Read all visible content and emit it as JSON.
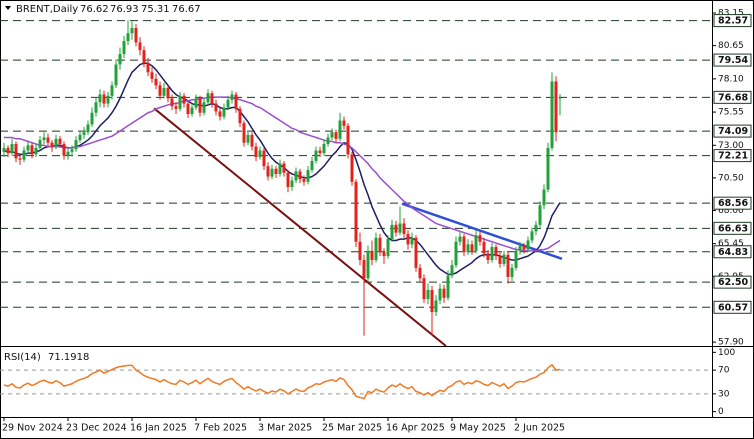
{
  "chart_data": {
    "type": "candlestick",
    "symbol": "BRENT,Daily",
    "categories": [
      "29 Nov 2024",
      null,
      null,
      null,
      null,
      null,
      null,
      null,
      null,
      null,
      null,
      null,
      null,
      null,
      null,
      null,
      "23 Dec 2024",
      null,
      null,
      null,
      null,
      null,
      null,
      null,
      null,
      null,
      null,
      null,
      null,
      null,
      null,
      null,
      "16 Jan 2025",
      null,
      null,
      null,
      null,
      null,
      null,
      null,
      null,
      null,
      null,
      null,
      null,
      null,
      null,
      null,
      "7 Feb 2025",
      null,
      null,
      null,
      null,
      null,
      null,
      null,
      null,
      null,
      null,
      null,
      null,
      null,
      null,
      null,
      "3 Mar 2025",
      null,
      null,
      null,
      null,
      null,
      null,
      null,
      null,
      null,
      null,
      null,
      null,
      null,
      null,
      null,
      "25 Mar 2025",
      null,
      null,
      null,
      null,
      null,
      null,
      null,
      null,
      null,
      null,
      null,
      null,
      null,
      null,
      null,
      "16 Apr 2025",
      null,
      null,
      null,
      null,
      null,
      null,
      null,
      null,
      null,
      null,
      null,
      null,
      null,
      null,
      null,
      "9 May 2025",
      null,
      null,
      null,
      null,
      null,
      null,
      null,
      null,
      null,
      null,
      null,
      null,
      null,
      null,
      null,
      "2 Jun 2025",
      null,
      null,
      null,
      null,
      null,
      null,
      null,
      null,
      null,
      null,
      null
    ],
    "ohlc": [
      [
        72.5,
        73.2,
        72.1,
        72.8
      ],
      [
        72.8,
        73.0,
        72.1,
        72.4
      ],
      [
        72.4,
        73.5,
        72.2,
        73.1
      ],
      [
        73.1,
        73.3,
        71.7,
        72.0
      ],
      [
        72.0,
        72.4,
        71.5,
        71.9
      ],
      [
        71.9,
        72.9,
        71.7,
        72.6
      ],
      [
        72.6,
        73.3,
        72.3,
        73.0
      ],
      [
        73.0,
        73.2,
        72.0,
        72.3
      ],
      [
        72.3,
        73.1,
        72.1,
        72.8
      ],
      [
        72.8,
        73.7,
        72.6,
        73.4
      ],
      [
        73.4,
        74.0,
        73.1,
        73.6
      ],
      [
        73.6,
        73.9,
        72.9,
        73.2
      ],
      [
        73.2,
        73.4,
        72.5,
        72.9
      ],
      [
        72.9,
        73.8,
        72.7,
        73.5
      ],
      [
        73.5,
        73.7,
        72.8,
        73.1
      ],
      [
        73.1,
        73.3,
        71.9,
        72.2
      ],
      [
        72.2,
        72.9,
        71.9,
        72.5
      ],
      [
        72.5,
        73.0,
        72.2,
        72.7
      ],
      [
        72.7,
        73.7,
        72.5,
        73.4
      ],
      [
        73.4,
        74.1,
        73.2,
        73.8
      ],
      [
        73.8,
        74.4,
        73.5,
        74.0
      ],
      [
        74.0,
        74.9,
        73.8,
        74.6
      ],
      [
        74.6,
        75.9,
        74.4,
        75.5
      ],
      [
        75.5,
        76.7,
        75.2,
        76.3
      ],
      [
        76.3,
        77.3,
        75.9,
        76.9
      ],
      [
        76.9,
        77.2,
        75.9,
        76.2
      ],
      [
        76.2,
        77.1,
        75.9,
        76.8
      ],
      [
        76.8,
        77.9,
        76.5,
        77.6
      ],
      [
        77.6,
        79.6,
        77.4,
        79.2
      ],
      [
        79.2,
        80.5,
        78.8,
        80.0
      ],
      [
        80.0,
        81.4,
        79.7,
        81.0
      ],
      [
        81.0,
        82.6,
        80.7,
        81.6
      ],
      [
        81.6,
        82.5,
        81.1,
        82.0
      ],
      [
        82.0,
        82.3,
        80.6,
        80.9
      ],
      [
        80.9,
        81.3,
        79.9,
        80.3
      ],
      [
        80.3,
        80.6,
        79.0,
        79.3
      ],
      [
        79.3,
        79.7,
        78.3,
        78.6
      ],
      [
        78.6,
        79.0,
        77.8,
        78.1
      ],
      [
        78.1,
        78.5,
        77.3,
        77.6
      ],
      [
        77.6,
        77.9,
        76.5,
        76.8
      ],
      [
        76.8,
        77.8,
        76.6,
        77.4
      ],
      [
        77.4,
        77.6,
        76.3,
        76.6
      ],
      [
        76.6,
        76.9,
        75.7,
        76.0
      ],
      [
        76.0,
        76.3,
        75.4,
        75.8
      ],
      [
        75.8,
        77.1,
        75.6,
        76.8
      ],
      [
        76.8,
        77.0,
        75.9,
        76.2
      ],
      [
        76.2,
        76.4,
        75.1,
        75.4
      ],
      [
        75.4,
        76.2,
        75.2,
        75.9
      ],
      [
        75.9,
        76.9,
        75.7,
        76.6
      ],
      [
        76.6,
        76.8,
        75.2,
        75.5
      ],
      [
        75.5,
        76.6,
        75.3,
        76.3
      ],
      [
        76.3,
        77.3,
        76.1,
        77.0
      ],
      [
        77.0,
        77.2,
        75.9,
        76.2
      ],
      [
        76.2,
        76.5,
        75.3,
        75.6
      ],
      [
        75.6,
        75.9,
        74.9,
        75.2
      ],
      [
        75.2,
        76.2,
        75.0,
        75.9
      ],
      [
        75.9,
        76.8,
        75.7,
        76.5
      ],
      [
        76.5,
        77.2,
        76.2,
        76.9
      ],
      [
        76.9,
        77.1,
        75.5,
        75.8
      ],
      [
        75.8,
        76.0,
        74.4,
        74.7
      ],
      [
        74.7,
        74.9,
        72.9,
        73.2
      ],
      [
        73.2,
        74.1,
        73.0,
        73.8
      ],
      [
        73.8,
        74.0,
        72.6,
        72.9
      ],
      [
        72.9,
        73.2,
        71.8,
        72.1
      ],
      [
        72.1,
        72.9,
        71.9,
        72.6
      ],
      [
        72.6,
        72.8,
        71.1,
        71.4
      ],
      [
        71.4,
        71.7,
        70.3,
        70.6
      ],
      [
        70.6,
        71.5,
        70.4,
        71.2
      ],
      [
        71.2,
        71.4,
        70.5,
        70.8
      ],
      [
        70.8,
        71.9,
        70.6,
        71.6
      ],
      [
        71.6,
        71.8,
        70.6,
        70.9
      ],
      [
        70.9,
        71.1,
        69.4,
        69.8
      ],
      [
        69.8,
        70.6,
        69.5,
        70.3
      ],
      [
        70.3,
        71.3,
        70.1,
        71.0
      ],
      [
        71.0,
        71.2,
        70.1,
        70.4
      ],
      [
        70.4,
        70.7,
        69.9,
        70.2
      ],
      [
        70.2,
        71.4,
        70.0,
        71.1
      ],
      [
        71.1,
        72.1,
        70.9,
        71.8
      ],
      [
        71.8,
        72.9,
        71.6,
        72.6
      ],
      [
        72.6,
        72.9,
        72.1,
        72.4
      ],
      [
        72.4,
        73.4,
        72.2,
        73.1
      ],
      [
        73.1,
        73.9,
        72.9,
        73.6
      ],
      [
        73.6,
        74.3,
        73.4,
        74.0
      ],
      [
        74.0,
        74.2,
        73.2,
        73.5
      ],
      [
        73.5,
        75.5,
        73.3,
        74.9
      ],
      [
        74.9,
        75.2,
        74.2,
        74.5
      ],
      [
        74.5,
        74.7,
        72.0,
        72.3
      ],
      [
        72.3,
        72.5,
        69.9,
        70.2
      ],
      [
        70.2,
        70.4,
        65.2,
        65.6
      ],
      [
        65.6,
        66.3,
        63.8,
        64.2
      ],
      [
        64.2,
        64.6,
        58.4,
        62.8
      ],
      [
        62.8,
        65.3,
        62.5,
        64.9
      ],
      [
        64.9,
        65.7,
        63.8,
        64.2
      ],
      [
        64.2,
        66.3,
        64.0,
        65.9
      ],
      [
        65.9,
        66.2,
        64.5,
        64.8
      ],
      [
        64.8,
        65.1,
        63.9,
        64.5
      ],
      [
        64.5,
        66.1,
        64.3,
        65.8
      ],
      [
        65.8,
        67.3,
        65.6,
        66.9
      ],
      [
        66.9,
        67.2,
        66.0,
        66.3
      ],
      [
        66.3,
        68.3,
        66.1,
        67.0
      ],
      [
        67.0,
        67.4,
        65.9,
        66.2
      ],
      [
        66.2,
        66.5,
        65.0,
        65.4
      ],
      [
        65.4,
        66.3,
        65.1,
        65.9
      ],
      [
        65.9,
        66.1,
        63.3,
        63.6
      ],
      [
        63.6,
        63.9,
        62.5,
        62.8
      ],
      [
        62.8,
        63.1,
        60.9,
        61.2
      ],
      [
        61.2,
        62.4,
        60.8,
        61.9
      ],
      [
        61.9,
        62.2,
        58.4,
        60.2
      ],
      [
        60.2,
        61.5,
        59.9,
        61.1
      ],
      [
        61.1,
        62.4,
        60.8,
        62.0
      ],
      [
        62.0,
        62.3,
        60.9,
        61.3
      ],
      [
        61.3,
        63.4,
        61.1,
        63.0
      ],
      [
        63.0,
        64.2,
        62.8,
        63.8
      ],
      [
        63.8,
        66.0,
        63.6,
        65.6
      ],
      [
        65.6,
        66.4,
        65.3,
        66.0
      ],
      [
        66.0,
        66.2,
        64.5,
        64.8
      ],
      [
        64.8,
        65.8,
        64.6,
        65.4
      ],
      [
        65.4,
        65.7,
        64.6,
        64.9
      ],
      [
        64.9,
        66.5,
        64.7,
        66.1
      ],
      [
        66.1,
        66.4,
        65.3,
        65.6
      ],
      [
        65.6,
        65.9,
        64.4,
        64.7
      ],
      [
        64.7,
        65.0,
        63.9,
        64.2
      ],
      [
        64.2,
        65.5,
        64.0,
        65.2
      ],
      [
        65.2,
        65.4,
        64.2,
        64.5
      ],
      [
        64.5,
        64.8,
        63.6,
        63.9
      ],
      [
        63.9,
        64.9,
        63.7,
        64.6
      ],
      [
        64.6,
        64.8,
        62.4,
        62.9
      ],
      [
        62.9,
        63.9,
        62.6,
        63.6
      ],
      [
        63.6,
        65.2,
        63.4,
        64.9
      ],
      [
        64.9,
        65.6,
        64.6,
        65.3
      ],
      [
        65.3,
        65.5,
        64.7,
        65.0
      ],
      [
        65.0,
        66.0,
        64.8,
        65.7
      ],
      [
        65.7,
        66.7,
        65.5,
        66.4
      ],
      [
        66.4,
        67.2,
        66.1,
        66.9
      ],
      [
        66.9,
        68.7,
        66.7,
        68.4
      ],
      [
        68.4,
        70.0,
        68.1,
        69.6
      ],
      [
        69.6,
        73.2,
        69.4,
        72.8
      ],
      [
        72.8,
        78.6,
        72.6,
        77.9
      ],
      [
        77.9,
        78.3,
        73.3,
        74.0
      ],
      [
        76.62,
        76.93,
        75.31,
        76.67
      ]
    ],
    "up_color": "#22a03a",
    "down_color": "#e0231c",
    "series": [
      {
        "color": "#1b1f66",
        "values": [
          72.6,
          72.5,
          72.5,
          72.4,
          72.3,
          72.3,
          72.4,
          72.4,
          72.5,
          72.6,
          72.8,
          72.9,
          72.9,
          73.0,
          73.0,
          72.9,
          72.8,
          72.8,
          72.9,
          73.0,
          73.2,
          73.4,
          73.7,
          74.1,
          74.5,
          74.8,
          75.1,
          75.5,
          76.0,
          76.6,
          77.3,
          78.0,
          78.6,
          78.9,
          79.2,
          79.3,
          79.3,
          79.1,
          78.8,
          78.4,
          78.0,
          77.6,
          77.2,
          76.9,
          76.7,
          76.6,
          76.4,
          76.2,
          76.1,
          76.1,
          76.0,
          76.1,
          76.2,
          76.1,
          75.9,
          75.8,
          75.8,
          75.9,
          75.9,
          75.6,
          75.2,
          74.8,
          74.3,
          73.8,
          73.4,
          72.9,
          72.4,
          72.0,
          71.7,
          71.5,
          71.3,
          71.0,
          70.8,
          70.7,
          70.6,
          70.5,
          70.5,
          70.6,
          70.8,
          71.1,
          71.4,
          71.8,
          72.2,
          72.5,
          72.9,
          73.2,
          73.1,
          72.7,
          71.9,
          71.0,
          70.0,
          69.2,
          68.3,
          67.6,
          66.9,
          66.3,
          65.9,
          65.7,
          65.7,
          65.8,
          65.8,
          65.9,
          65.9,
          65.7,
          65.4,
          65.0,
          64.6,
          64.2,
          63.8,
          63.5,
          63.3,
          63.1,
          63.1,
          63.2,
          63.4,
          63.6,
          63.8,
          64.0,
          64.3,
          64.5,
          64.6,
          64.6,
          64.6,
          64.6,
          64.5,
          64.4,
          64.3,
          64.2,
          64.2,
          64.3,
          64.4,
          64.5,
          64.7,
          64.9,
          65.3,
          65.9,
          66.7,
          67.6,
          68.1,
          68.6
        ]
      },
      {
        "color": "#9b4fcf",
        "values": [
          73.6,
          73.6,
          73.6,
          73.5,
          73.5,
          73.4,
          73.3,
          73.2,
          73.1,
          73.0,
          73.0,
          72.9,
          72.9,
          72.9,
          72.9,
          72.8,
          72.8,
          72.8,
          72.9,
          72.9,
          73.0,
          73.1,
          73.2,
          73.3,
          73.4,
          73.5,
          73.6,
          73.7,
          73.9,
          74.1,
          74.3,
          74.5,
          74.7,
          74.9,
          75.1,
          75.3,
          75.5,
          75.6,
          75.8,
          75.9,
          76.0,
          76.1,
          76.2,
          76.2,
          76.3,
          76.4,
          76.4,
          76.5,
          76.5,
          76.6,
          76.6,
          76.7,
          76.7,
          76.7,
          76.7,
          76.7,
          76.7,
          76.6,
          76.6,
          76.5,
          76.4,
          76.3,
          76.2,
          76.0,
          75.9,
          75.7,
          75.5,
          75.3,
          75.1,
          74.9,
          74.7,
          74.5,
          74.3,
          74.2,
          74.0,
          73.9,
          73.8,
          73.7,
          73.6,
          73.5,
          73.4,
          73.3,
          73.3,
          73.2,
          73.2,
          73.1,
          73.0,
          72.8,
          72.5,
          72.2,
          71.9,
          71.6,
          71.2,
          70.9,
          70.5,
          70.2,
          69.9,
          69.6,
          69.3,
          69.0,
          68.7,
          68.5,
          68.2,
          68.0,
          67.8,
          67.6,
          67.4,
          67.2,
          67.0,
          66.9,
          66.8,
          66.7,
          66.6,
          66.5,
          66.4,
          66.3,
          66.2,
          66.1,
          66.0,
          65.9,
          65.8,
          65.7,
          65.6,
          65.5,
          65.4,
          65.3,
          65.2,
          65.1,
          65.0,
          65.0,
          64.9,
          64.9,
          64.9,
          64.9,
          65.0,
          65.0,
          65.1,
          65.3,
          65.5,
          65.7
        ]
      }
    ],
    "trendlines": [
      {
        "color": "#7a0f0f",
        "x": [
          37.5,
          110.5
        ],
        "values": [
          75.84,
          57.6
        ]
      },
      {
        "color": "#2f4fd6",
        "x": [
          99.5,
          139.5
        ],
        "values": [
          68.52,
          64.29
        ]
      }
    ],
    "ylim": [
      57.6,
      84.15
    ],
    "yticks": [
      83.15,
      80.65,
      {
        "value": 78.1,
        "label": "78.10"
      },
      75.55,
      {
        "value": 73,
        "label": "73.00"
      },
      {
        "value": 70.5,
        "label": "70.50"
      },
      {
        "value": 68,
        "label": "68.00"
      },
      65.45,
      62.95,
      {
        "value": 57.9,
        "label": "57.90"
      }
    ],
    "levels": [
      82.57,
      79.54,
      76.68,
      74.09,
      72.21,
      68.56,
      66.63,
      64.83,
      {
        "value": 62.5,
        "label": "62.50"
      },
      60.57
    ],
    "level_color": "#1f3a24",
    "rsi": {
      "title": "RSI(14)",
      "color": "#f07a22",
      "values": [
        45,
        43,
        47,
        41,
        40,
        45,
        48,
        44,
        47,
        51,
        53,
        50,
        48,
        52,
        49,
        43,
        45,
        47,
        51,
        54,
        56,
        59,
        64,
        67,
        70,
        65,
        68,
        71,
        74,
        76,
        77,
        78,
        78,
        70,
        66,
        61,
        58,
        56,
        54,
        50,
        54,
        50,
        47,
        46,
        53,
        50,
        46,
        49,
        53,
        47,
        52,
        56,
        51,
        48,
        46,
        51,
        54,
        56,
        49,
        44,
        38,
        42,
        38,
        35,
        38,
        34,
        31,
        35,
        33,
        38,
        35,
        30,
        34,
        38,
        35,
        34,
        40,
        43,
        47,
        46,
        50,
        52,
        54,
        51,
        57,
        54,
        44,
        37,
        26,
        24,
        22,
        34,
        32,
        38,
        35,
        33,
        40,
        45,
        42,
        47,
        42,
        39,
        42,
        34,
        32,
        28,
        32,
        27,
        32,
        36,
        34,
        41,
        44,
        50,
        52,
        46,
        49,
        47,
        52,
        50,
        46,
        44,
        49,
        46,
        43,
        47,
        39,
        43,
        49,
        51,
        50,
        53,
        56,
        58,
        63,
        66,
        74,
        79,
        70,
        71.1918
      ],
      "ylim": [
        -9,
        109
      ],
      "yticks": [
        100,
        70,
        30,
        0
      ],
      "levels": [
        70,
        30
      ]
    }
  }
}
